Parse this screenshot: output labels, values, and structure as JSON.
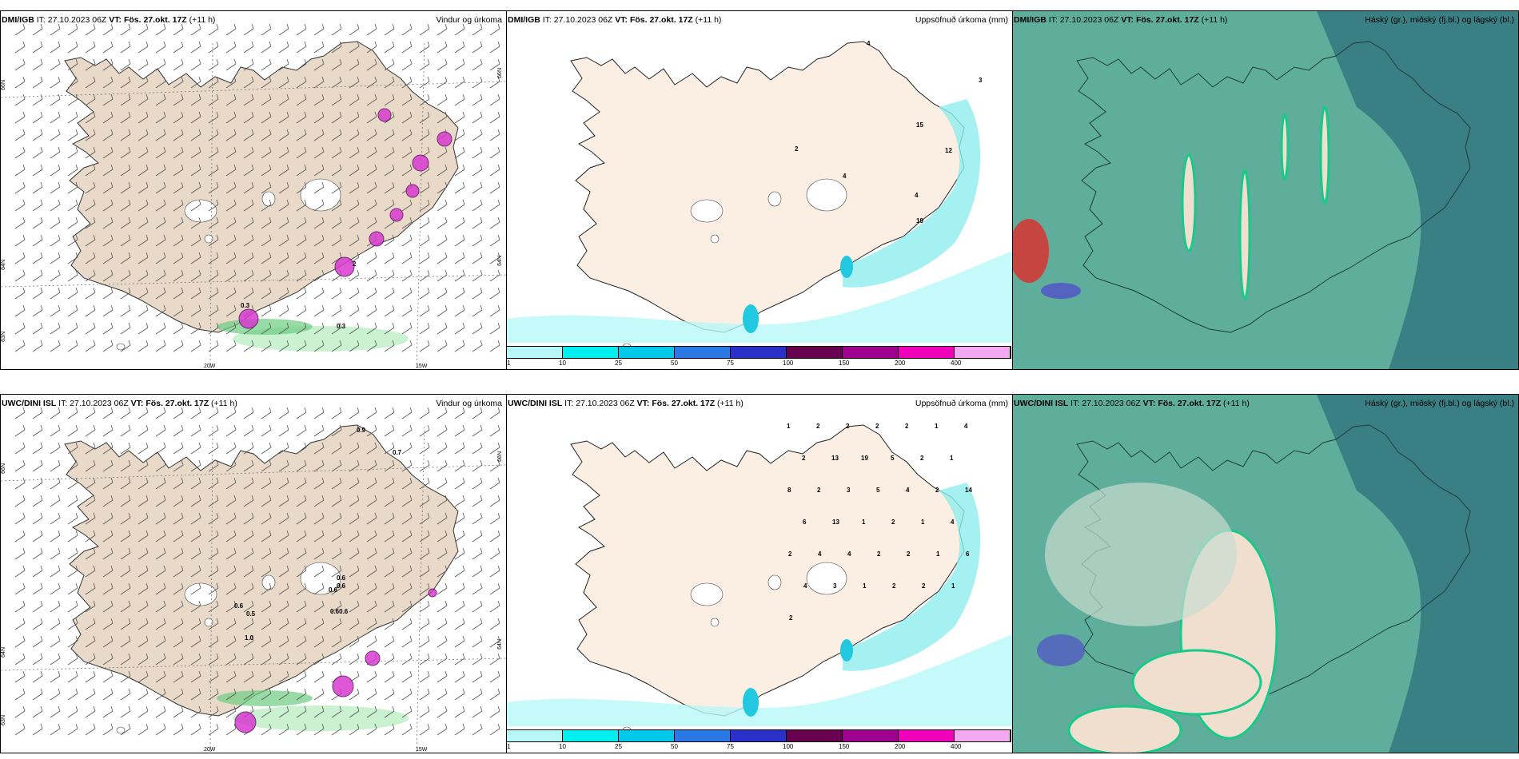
{
  "panels": [
    {
      "model": "DMI/IGB",
      "it_label": "IT:",
      "it": "27.10.2023 06Z",
      "vt_label": "VT:",
      "vt": "Fös. 27.okt. 17Z",
      "lead": "(+11 h)",
      "title": "Vindur og úrkoma"
    },
    {
      "model": "DMI/IGB",
      "it_label": "IT:",
      "it": "27.10.2023 06Z",
      "vt_label": "VT:",
      "vt": "Fös. 27.okt. 17Z",
      "lead": "(+11 h)",
      "title": "Uppsöfnuð úrkoma (mm)"
    },
    {
      "model": "DMI/IGB",
      "it_label": "IT:",
      "it": "27.10.2023 06Z",
      "vt_label": "VT:",
      "vt": "Fös. 27.okt. 17Z",
      "lead": "(+11 h)",
      "title": "Háský (gr.), miðský (fj.bl.) og lágský (bl.)"
    },
    {
      "model": "UWC/DINI ISL",
      "it_label": "IT:",
      "it": "27.10.2023 06Z",
      "vt_label": "VT:",
      "vt": "Fös. 27.okt. 17Z",
      "lead": "(+11 h)",
      "title": "Vindur og úrkoma"
    },
    {
      "model": "UWC/DINI ISL",
      "it_label": "IT:",
      "it": "27.10.2023 06Z",
      "vt_label": "VT:",
      "vt": "Fös. 27.okt. 17Z",
      "lead": "(+11 h)",
      "title": "Uppsöfnuð úrkoma (mm)"
    },
    {
      "model": "UWC/DINI ISL",
      "it_label": "IT:",
      "it": "27.10.2023 06Z",
      "vt_label": "VT:",
      "vt": "Fös. 27.okt. 17Z",
      "lead": "(+11 h)",
      "title": "Háský (gr.), miðský (fj.bl.) og lágský (bl.)"
    }
  ],
  "axis_labels": {
    "lon_20": "20W",
    "lon_15": "15W",
    "lat_66": "66N",
    "lat_64": "64N",
    "lat_63": "63N"
  },
  "precip_legend": {
    "ticks": [
      "1",
      "10",
      "25",
      "50",
      "75",
      "100",
      "150",
      "200",
      "400"
    ],
    "colors": [
      "#b8f7f7",
      "#00f0f0",
      "#00c8e8",
      "#2a78e4",
      "#2a30c8",
      "#6a0050",
      "#a00090",
      "#f000b8",
      "#f4a8f0"
    ]
  },
  "wind_labels_top": [
    "0.3",
    "2",
    "0.3"
  ],
  "wind_labels_bottom": [
    "0.9",
    "0.7",
    "0.6",
    "0.6",
    "0.6",
    "0.60.6",
    "1.0",
    "0.6",
    "0.5"
  ],
  "precip_numbers_top": [
    "4",
    "3",
    "15",
    "12",
    "2",
    "4",
    "19",
    "4"
  ],
  "precip_numbers_bottom": [
    "1",
    "2",
    "2",
    "2",
    "2",
    "1",
    "4",
    "2",
    "13",
    "19",
    "5",
    "2",
    "1",
    "8",
    "2",
    "3",
    "5",
    "4",
    "2",
    "14",
    "6",
    "13",
    "1",
    "2",
    "1",
    "4",
    "2",
    "4",
    "4",
    "2",
    "2",
    "1",
    "6",
    "4",
    "3",
    "1",
    "2",
    "2",
    "1",
    "2"
  ],
  "colors": {
    "land": "#e8d9c8",
    "land_light": "#fbeee2",
    "cloud_high": "#5fae9c",
    "cloud_dark": "#2e6f7c",
    "cloud_green": "#19c98a",
    "pink": "#d83ad0",
    "light_green": "#bdeec4"
  }
}
